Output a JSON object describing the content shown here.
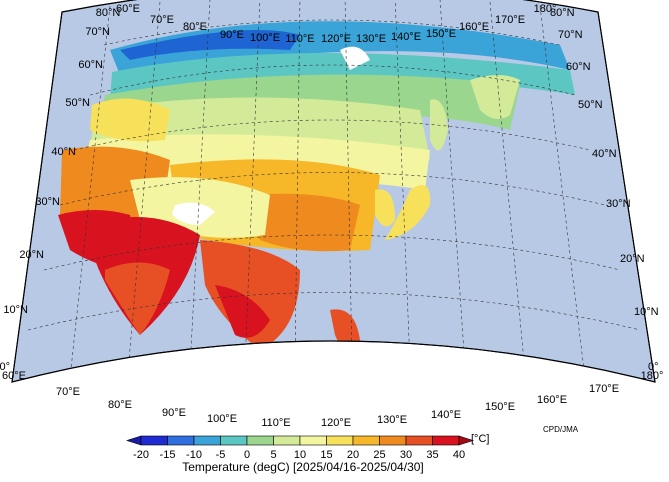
{
  "map": {
    "lon_labels": [
      "60°E",
      "70°E",
      "80°E",
      "90°E",
      "100°E",
      "110°E",
      "120°E",
      "130°E",
      "140°E",
      "150°E",
      "160°E",
      "170°E",
      "180°"
    ],
    "lat_labels": [
      "0°",
      "10°N",
      "20°N",
      "30°N",
      "40°N",
      "50°N",
      "60°N",
      "70°N",
      "80°N"
    ],
    "top_lon_labels": [
      "80°N",
      "60°E",
      "70°E",
      "80°E",
      "90°E",
      "100°E",
      "110°E",
      "120°E",
      "130°E",
      "140°E",
      "150°E",
      "160°E",
      "170°E",
      "180°"
    ],
    "right_lat_labels": [
      "80°N",
      "70°N",
      "60°N",
      "50°N",
      "40°N",
      "30°N",
      "20°N",
      "10°N",
      "0°"
    ],
    "credit": "CPD/JMA",
    "ocean_color": "#b8c9e6",
    "land_colors": {
      "very_cold": "#1e64d2",
      "cold": "#3aa4d8",
      "cool": "#5cc6c2",
      "mild": "#9ad68e",
      "temperate": "#d3eb99",
      "warmish": "#f4f5a0",
      "warm": "#f8e15a",
      "hot": "#f6b728",
      "hotter": "#ef8a1e",
      "very_hot": "#e75024",
      "extreme": "#d8121e"
    }
  },
  "colorbar": {
    "ticks": [
      "-20",
      "-15",
      "-10",
      "-5",
      "0",
      "5",
      "10",
      "15",
      "20",
      "25",
      "30",
      "35",
      "40"
    ],
    "unit": "[°C]",
    "colors": [
      "#1f2bd0",
      "#2f6fe0",
      "#3aa4d8",
      "#5cc6c2",
      "#9ad68e",
      "#d3eb99",
      "#f4f5a0",
      "#f8e15a",
      "#f6b728",
      "#ef8a1e",
      "#e75024",
      "#d8121e"
    ],
    "end_low": "#1a1aa8",
    "end_high": "#a30a14",
    "title": "Temperature (degC) [2025/04/16-2025/04/30]"
  }
}
